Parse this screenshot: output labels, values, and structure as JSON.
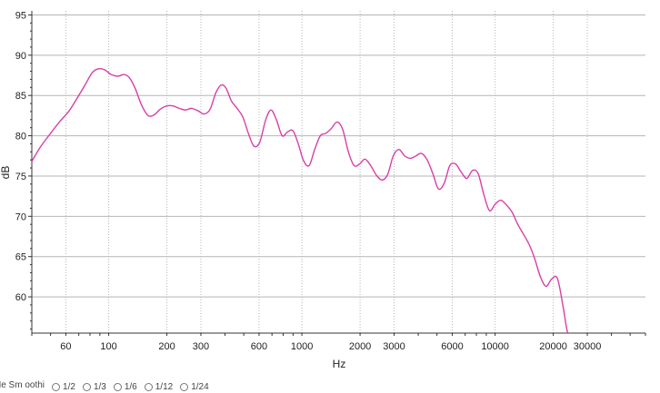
{
  "chart_data": {
    "type": "line",
    "xscale": "log",
    "xlabel": "Hz",
    "ylabel": "dB",
    "xlim": [
      40,
      60000
    ],
    "ylim": [
      55.5,
      95.5
    ],
    "x_ticks": [
      60,
      100,
      200,
      300,
      600,
      1000,
      2000,
      3000,
      6000,
      10000,
      20000,
      30000
    ],
    "x_tick_labels": [
      "60",
      "100",
      "200",
      "300",
      "600",
      "1000",
      "2000",
      "3000",
      "6000",
      "10000",
      "20000",
      "30000"
    ],
    "y_ticks": [
      60,
      65,
      70,
      75,
      80,
      85,
      90,
      95
    ],
    "y_tick_labels": [
      "60",
      "65",
      "70",
      "75",
      "80",
      "85",
      "90",
      "95"
    ],
    "grid": true,
    "colors": {
      "series": "#d83fa8",
      "grid": "#b5b5b5",
      "axis": "#333333"
    },
    "series": [
      {
        "x": [
          40,
          44,
          50,
          56,
          62,
          68,
          75,
          82,
          88,
          95,
          103,
          112,
          120,
          128,
          137,
          148,
          160,
          172,
          185,
          200,
          215,
          232,
          250,
          268,
          290,
          312,
          335,
          358,
          382,
          405,
          432,
          462,
          495,
          530,
          565,
          605,
          650,
          693,
          740,
          790,
          845,
          900,
          960,
          1020,
          1090,
          1165,
          1245,
          1330,
          1420,
          1520,
          1625,
          1740,
          1860,
          1990,
          2120,
          2270,
          2430,
          2600,
          2780,
          2970,
          3180,
          3400,
          3640,
          3890,
          4160,
          4450,
          4760,
          5090,
          5450,
          5830,
          6240,
          6670,
          7140,
          7640,
          8170,
          8740,
          9350,
          10000,
          10700,
          11450,
          12250,
          13100,
          14000,
          15000,
          16000,
          17150,
          18350,
          19600,
          21000,
          22400,
          23500,
          24500
        ],
        "y": [
          76.8,
          78.5,
          80.3,
          81.8,
          83.0,
          84.5,
          86.2,
          87.8,
          88.3,
          88.2,
          87.6,
          87.4,
          87.6,
          87.2,
          85.9,
          83.8,
          82.5,
          82.6,
          83.3,
          83.7,
          83.7,
          83.4,
          83.2,
          83.4,
          83.1,
          82.7,
          83.3,
          85.3,
          86.3,
          85.9,
          84.3,
          83.4,
          82.3,
          80.2,
          78.7,
          79.2,
          82.0,
          83.2,
          81.9,
          80.0,
          80.5,
          80.6,
          78.9,
          76.9,
          76.3,
          78.3,
          80.0,
          80.3,
          80.9,
          81.7,
          80.8,
          78.0,
          76.3,
          76.5,
          77.1,
          76.3,
          75.1,
          74.5,
          75.2,
          77.5,
          78.3,
          77.5,
          77.2,
          77.5,
          77.8,
          77.0,
          75.3,
          73.4,
          74.1,
          76.3,
          76.5,
          75.5,
          74.7,
          75.7,
          75.3,
          72.7,
          70.7,
          71.5,
          72.0,
          71.4,
          70.5,
          69.0,
          67.8,
          66.5,
          64.8,
          62.5,
          61.3,
          62.2,
          62.3,
          59.0,
          56.0,
          54.5
        ]
      }
    ]
  },
  "bottom_bar": {
    "lead_text": "Ne  Sm  oothi",
    "options": [
      "1/2",
      "1/3",
      "1/6",
      "1/12",
      "1/24"
    ]
  }
}
